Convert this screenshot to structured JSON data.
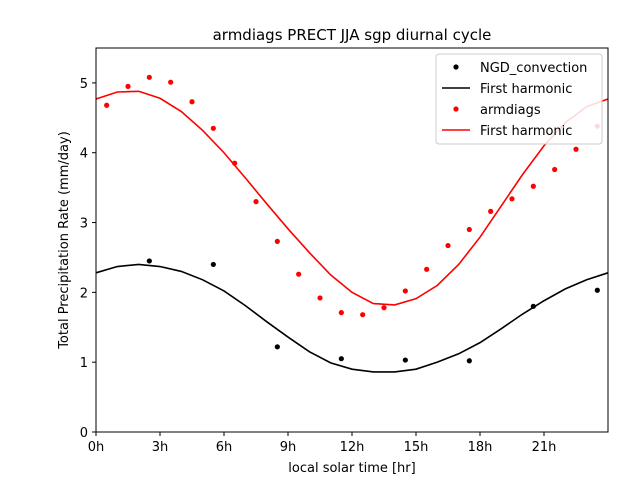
{
  "chart_data": {
    "type": "scatter",
    "title": "armdiags PRECT JJA sgp diurnal cycle",
    "xlabel": "local solar time [hr]",
    "ylabel": "Total Precipitation Rate (mm/day)",
    "xlim": [
      0,
      24
    ],
    "ylim": [
      0,
      5.5
    ],
    "x_ticks": [
      0,
      3,
      6,
      9,
      12,
      15,
      18,
      21
    ],
    "x_tick_labels": [
      "0h",
      "3h",
      "6h",
      "9h",
      "12h",
      "15h",
      "18h",
      "21h"
    ],
    "y_ticks": [
      0,
      1,
      2,
      3,
      4,
      5
    ],
    "y_tick_labels": [
      "0",
      "1",
      "2",
      "3",
      "4",
      "5"
    ],
    "legend_position": "top-right",
    "series": [
      {
        "name": "NGD_convection",
        "kind": "points",
        "color": "#000000",
        "x": [
          2.5,
          5.5,
          8.5,
          11.5,
          14.5,
          17.5,
          20.5,
          23.5
        ],
        "y": [
          2.45,
          2.4,
          1.22,
          1.05,
          1.03,
          1.02,
          1.8,
          2.03
        ]
      },
      {
        "name": "First harmonic",
        "kind": "line",
        "color": "#000000",
        "x": [
          0,
          1,
          2,
          3,
          4,
          5,
          6,
          7,
          8,
          9,
          10,
          11,
          12,
          13,
          14,
          15,
          16,
          17,
          18,
          19,
          20,
          21,
          22,
          23,
          24
        ],
        "y": [
          2.28,
          2.37,
          2.4,
          2.37,
          2.3,
          2.18,
          2.02,
          1.81,
          1.58,
          1.36,
          1.15,
          0.99,
          0.9,
          0.86,
          0.86,
          0.9,
          1.0,
          1.12,
          1.28,
          1.48,
          1.69,
          1.88,
          2.05,
          2.18,
          2.28
        ]
      },
      {
        "name": "armdiags",
        "kind": "points",
        "color": "#ff0000",
        "x": [
          0.5,
          1.5,
          2.5,
          3.5,
          4.5,
          5.5,
          6.5,
          7.5,
          8.5,
          9.5,
          10.5,
          11.5,
          12.5,
          13.5,
          14.5,
          15.5,
          16.5,
          17.5,
          18.5,
          19.5,
          20.5,
          21.5,
          22.5,
          23.5
        ],
        "y": [
          4.68,
          4.95,
          5.08,
          5.01,
          4.73,
          4.35,
          3.85,
          3.3,
          2.73,
          2.26,
          1.92,
          1.71,
          1.68,
          1.78,
          2.02,
          2.33,
          2.67,
          2.9,
          3.16,
          3.34,
          3.52,
          3.76,
          4.05,
          4.38
        ]
      },
      {
        "name": "First harmonic",
        "kind": "line",
        "color": "#ff0000",
        "x": [
          0,
          1,
          2,
          3,
          4,
          5,
          6,
          7,
          8,
          9,
          10,
          11,
          12,
          13,
          14,
          15,
          16,
          17,
          18,
          19,
          20,
          21,
          22,
          23,
          24
        ],
        "y": [
          4.77,
          4.87,
          4.88,
          4.78,
          4.59,
          4.32,
          4.0,
          3.64,
          3.27,
          2.91,
          2.57,
          2.25,
          2.0,
          1.84,
          1.82,
          1.91,
          2.1,
          2.4,
          2.79,
          3.24,
          3.69,
          4.1,
          4.43,
          4.66,
          4.77
        ]
      }
    ]
  }
}
